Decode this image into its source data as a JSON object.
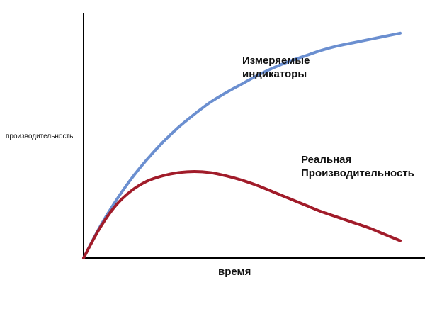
{
  "chart_data": {
    "type": "line",
    "title": "",
    "xlabel": "время",
    "ylabel": "производительность",
    "grid": false,
    "legend": "none",
    "xlim": [
      0,
      100
    ],
    "ylim": [
      0,
      100
    ],
    "series": [
      {
        "name_lines": [
          "Измеряемые",
          "индикаторы"
        ],
        "color": "#6b8fd0",
        "x": [
          0,
          5,
          10,
          15,
          20,
          25,
          30,
          35,
          40,
          45,
          50,
          55,
          60,
          65,
          70,
          75,
          80,
          85,
          90,
          95,
          100
        ],
        "y": [
          0,
          14,
          26,
          36.5,
          45.5,
          53.5,
          60.5,
          66.5,
          72,
          76.5,
          80.5,
          84.5,
          88,
          91,
          93.5,
          96,
          98,
          99.5,
          101,
          102.5,
          104
        ]
      },
      {
        "name_lines": [
          "Реальная",
          "Производительность"
        ],
        "color": "#a11c2a",
        "x": [
          0,
          5,
          10,
          15,
          20,
          25,
          30,
          35,
          40,
          45,
          50,
          55,
          60,
          65,
          70,
          75,
          80,
          85,
          90,
          95,
          100
        ],
        "y": [
          0,
          13.5,
          24,
          31,
          35.5,
          38,
          39.5,
          40,
          39.5,
          38,
          36,
          33.5,
          30.5,
          27.5,
          24.5,
          21.5,
          19,
          16.5,
          14,
          11,
          8
        ]
      }
    ]
  }
}
